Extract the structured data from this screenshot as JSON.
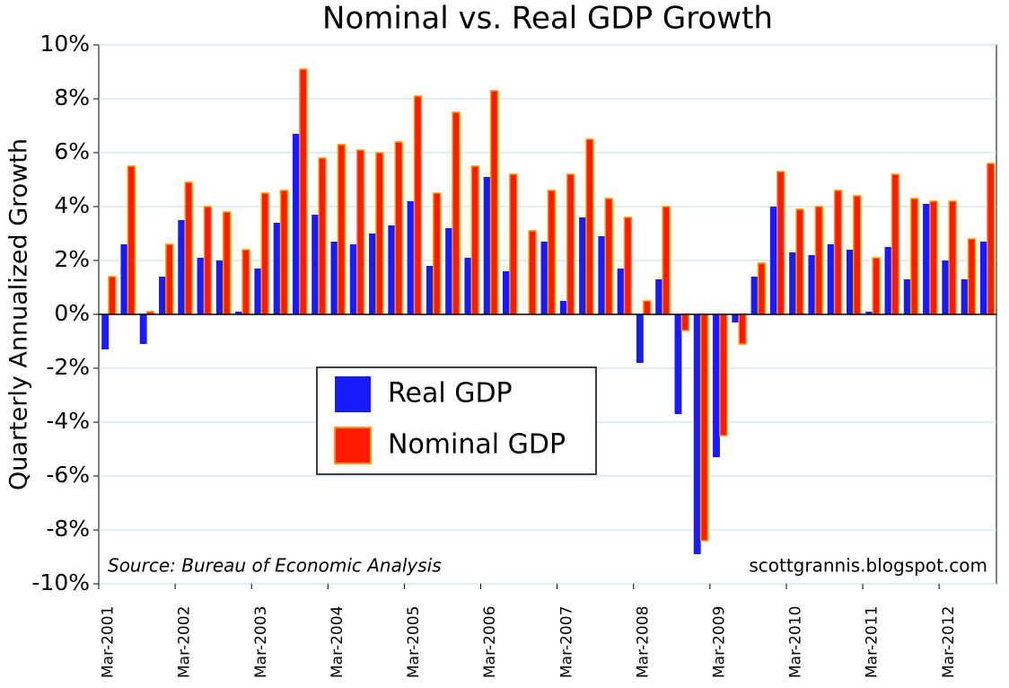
{
  "chart_data": {
    "type": "bar",
    "title": "Nominal vs. Real GDP Growth",
    "y_label": "Quarterly Annualized Growth",
    "annotations": [
      "Source: Bureau of Economic Analysis",
      "scottgrannis.blogspot.com"
    ],
    "categories": [
      "Mar-2001",
      null,
      null,
      null,
      "Mar-2002",
      null,
      null,
      null,
      "Mar-2003",
      null,
      null,
      null,
      "Mar-2004",
      null,
      null,
      null,
      "Mar-2005",
      null,
      null,
      null,
      "Mar-2006",
      null,
      null,
      null,
      "Mar-2007",
      null,
      null,
      null,
      "Mar-2008",
      null,
      null,
      null,
      "Mar-2009",
      null,
      null,
      null,
      "Mar-2010",
      null,
      null,
      null,
      "Mar-2011",
      null,
      null,
      null,
      "Mar-2012",
      null,
      null
    ],
    "series": [
      {
        "name": "Real GDP",
        "color": "#1a1aff",
        "values": [
          -1.3,
          2.6,
          -1.1,
          1.4,
          3.5,
          2.1,
          2.0,
          0.1,
          1.7,
          3.4,
          6.7,
          3.7,
          2.7,
          2.6,
          3.0,
          3.3,
          4.2,
          1.8,
          3.2,
          2.1,
          5.1,
          1.6,
          0.0,
          2.7,
          0.5,
          3.6,
          2.9,
          1.7,
          -1.8,
          1.3,
          -3.7,
          -8.9,
          -5.3,
          -0.3,
          1.4,
          4.0,
          2.3,
          2.2,
          2.6,
          2.4,
          0.1,
          2.5,
          1.3,
          4.1,
          2.0,
          1.3,
          2.7
        ]
      },
      {
        "name": "Nominal GDP",
        "color": "#ff1a00",
        "values": [
          1.4,
          5.5,
          0.1,
          2.6,
          4.9,
          4.0,
          3.8,
          2.4,
          4.5,
          4.6,
          9.1,
          5.8,
          6.3,
          6.1,
          6.0,
          6.4,
          8.1,
          4.5,
          7.5,
          5.5,
          8.3,
          5.2,
          3.1,
          4.6,
          5.2,
          6.5,
          4.3,
          3.6,
          0.5,
          4.0,
          -0.6,
          -8.4,
          -4.5,
          -1.1,
          1.9,
          5.3,
          3.9,
          4.0,
          4.6,
          4.4,
          2.1,
          5.2,
          4.3,
          4.2,
          4.2,
          2.8,
          5.6
        ]
      }
    ],
    "ylim": [
      -10,
      10
    ],
    "yticks": [
      {
        "value": -10,
        "label": "-10%"
      },
      {
        "value": -8,
        "label": "-8%"
      },
      {
        "value": -6,
        "label": "-6%"
      },
      {
        "value": -4,
        "label": "-4%"
      },
      {
        "value": -2,
        "label": "-2%"
      },
      {
        "value": 0,
        "label": "0%"
      },
      {
        "value": 2,
        "label": "2%"
      },
      {
        "value": 4,
        "label": "4%"
      },
      {
        "value": 6,
        "label": "6%"
      },
      {
        "value": 8,
        "label": "8%"
      },
      {
        "value": 10,
        "label": "10%"
      }
    ],
    "grid": true
  }
}
